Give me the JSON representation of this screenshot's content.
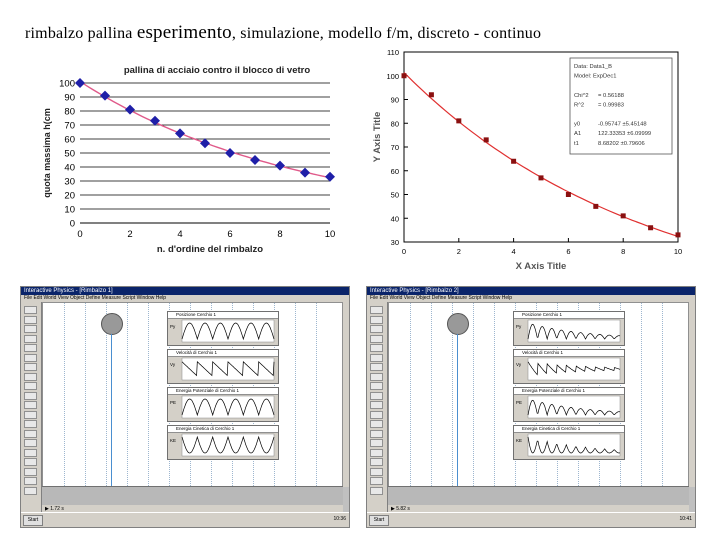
{
  "slide": {
    "title_pre": "rimbalzo pallina ",
    "title_big": "esperimento",
    "title_post": ", simulazione, modello f/m, discreto - continuo"
  },
  "chart_data": [
    {
      "type": "scatter",
      "title": "pallina di acciaio contro il blocco di vetro",
      "xlabel": "n. d'ordine del rimbalzo",
      "ylabel": "quota massima h(cm",
      "xlim": [
        0,
        10
      ],
      "ylim": [
        0,
        100
      ],
      "xticks": [
        0,
        2,
        4,
        6,
        8,
        10
      ],
      "yticks": [
        0,
        10,
        20,
        30,
        40,
        50,
        60,
        70,
        80,
        90,
        100
      ],
      "grid": "horizontal",
      "series": [
        {
          "x": [
            0,
            1,
            2,
            3,
            4,
            5,
            6,
            7,
            8,
            9,
            10
          ],
          "y": [
            100,
            91,
            81,
            73,
            64,
            57,
            50,
            45,
            41,
            36,
            33
          ],
          "marker": "diamond",
          "color": "#1f1fa8",
          "fit_color": "#e05a8a"
        }
      ]
    },
    {
      "type": "scatter",
      "title": "",
      "xlabel": "X Axis Title",
      "ylabel": "Y Axis Title",
      "xlim": [
        0,
        10
      ],
      "ylim": [
        30,
        110
      ],
      "xticks": [
        0,
        2,
        4,
        6,
        8,
        10
      ],
      "yticks": [
        30,
        40,
        50,
        60,
        70,
        80,
        90,
        100,
        110
      ],
      "grid": "none",
      "series": [
        {
          "x": [
            0,
            1,
            2,
            3,
            4,
            5,
            6,
            7,
            8,
            9,
            10
          ],
          "y": [
            100,
            92,
            81,
            73,
            64,
            57,
            50,
            45,
            41,
            36,
            33
          ],
          "marker": "square",
          "color": "#8a1010",
          "fit_color": "#e03030"
        }
      ],
      "fit_box": {
        "rows": [
          [
            "Data: Data1_B",
            ""
          ],
          [
            "Model: ExpDec1",
            ""
          ],
          [
            "",
            ""
          ],
          [
            "Chi^2",
            "= 0.56188"
          ],
          [
            "R^2",
            "= 0.99983"
          ],
          [
            "",
            ""
          ],
          [
            "y0",
            "-0.95747   ±5.45148"
          ],
          [
            "A1",
            "122.33353  ±6.09999"
          ],
          [
            "t1",
            "8.68202    ±0.79606"
          ]
        ]
      }
    }
  ],
  "sim_windows": [
    {
      "title": "Interactive Physics - [Rimbalzo 1]",
      "menu": "File  Edit  World  View  Object  Define  Measure  Script  Window  Help",
      "meters": [
        {
          "title": "Posizione Cerchio 1",
          "y_label": "Py",
          "pattern": "arches"
        },
        {
          "title": "Velocità di Cerchio 1",
          "y_label": "Vy",
          "pattern": "saw"
        },
        {
          "title": "Energia Potenziale di Cerchio 1",
          "y_label": "PE",
          "pattern": "arches"
        },
        {
          "title": "Energia Cinetica di Cerchio 1",
          "y_label": "KE",
          "pattern": "dips"
        }
      ],
      "play_label": "▶  1.72 s",
      "start_label": "Start",
      "clock": "10:36"
    },
    {
      "title": "Interactive Physics - [Rimbalzo 2]",
      "menu": "File  Edit  World  View  Object  Define  Measure  Script  Window  Help",
      "meters": [
        {
          "title": "Posizione Cerchio 1",
          "y_label": "Py",
          "pattern": "decay-arches"
        },
        {
          "title": "Velocità di Cerchio 1",
          "y_label": "Vy",
          "pattern": "decay-saw"
        },
        {
          "title": "Energia Potenziale di Cerchio 1",
          "y_label": "PE",
          "pattern": "decay-arches"
        },
        {
          "title": "Energia Cinetica di Cerchio 1",
          "y_label": "KE",
          "pattern": "decay-dips"
        }
      ],
      "play_label": "▶  5.82 s",
      "start_label": "Start",
      "clock": "10:41"
    }
  ]
}
